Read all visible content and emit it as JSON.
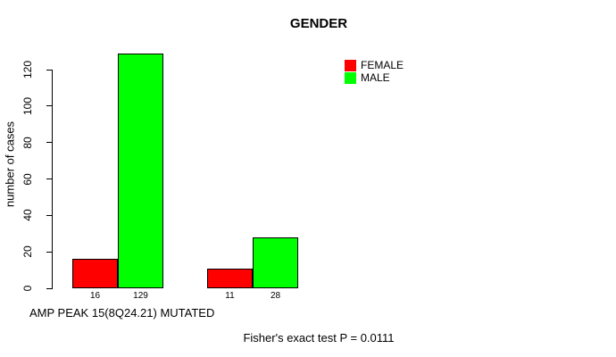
{
  "chart_data": {
    "type": "bar",
    "title": "GENDER",
    "ylabel": "number of cases",
    "xlabel": "AMP PEAK 15(8Q24.21) MUTATED",
    "annotation": "Fisher's exact test P = 0.0111",
    "ylim": [
      0,
      120
    ],
    "yticks": [
      0,
      20,
      40,
      60,
      80,
      100,
      120
    ],
    "grid": false,
    "legend_position": "top-right",
    "legend": [
      {
        "label": "FEMALE",
        "color": "#ff0000"
      },
      {
        "label": "MALE",
        "color": "#00ff00"
      }
    ],
    "groups": [
      {
        "bars": [
          {
            "series": "FEMALE",
            "value": 16,
            "label": "16"
          },
          {
            "series": "MALE",
            "value": 129,
            "label": "129"
          }
        ]
      },
      {
        "bars": [
          {
            "series": "FEMALE",
            "value": 11,
            "label": "11"
          },
          {
            "series": "MALE",
            "value": 28,
            "label": "28"
          }
        ]
      }
    ]
  }
}
